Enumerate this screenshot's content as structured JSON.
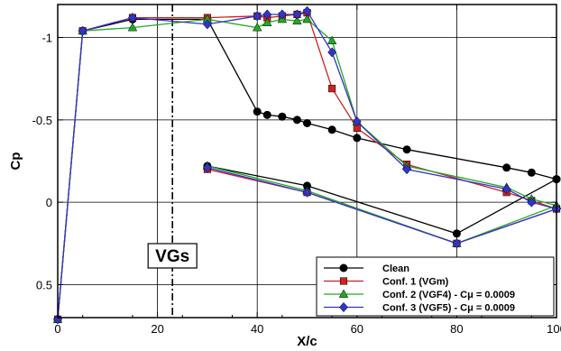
{
  "chart_data": {
    "type": "line",
    "title": "",
    "xlabel": "X/c",
    "ylabel": "Cp",
    "xlim": [
      0,
      100
    ],
    "ylim": [
      -1.2,
      0.7
    ],
    "y_inverted": true,
    "x_ticks": [
      0,
      20,
      40,
      60,
      80,
      100
    ],
    "y_ticks": [
      -1,
      -0.5,
      0,
      0.5
    ],
    "x_tick_labels": [
      "0",
      "20",
      "40",
      "60",
      "80",
      "100"
    ],
    "y_tick_labels": [
      "-1",
      "-0.5",
      "0",
      "0.5"
    ],
    "grid": true,
    "legend_position": "bottom-right",
    "annotations": [
      {
        "text": "VGs",
        "x": 23
      }
    ],
    "series": [
      {
        "name": "Clean",
        "color": "#000000",
        "marker": "circle",
        "upper": [
          [
            0,
            0.71
          ],
          [
            5,
            -1.04
          ],
          [
            15,
            -1.11
          ],
          [
            30,
            -1.11
          ],
          [
            40,
            -0.55
          ],
          [
            42,
            -0.53
          ],
          [
            45,
            -0.52
          ],
          [
            48,
            -0.5
          ],
          [
            50,
            -0.48
          ],
          [
            55,
            -0.44
          ],
          [
            60,
            -0.39
          ],
          [
            70,
            -0.32
          ],
          [
            90,
            -0.21
          ],
          [
            95,
            -0.18
          ],
          [
            100,
            -0.14
          ]
        ],
        "lower": [
          [
            30,
            -0.22
          ],
          [
            50,
            -0.1
          ],
          [
            80,
            0.19
          ],
          [
            100,
            -0.14
          ]
        ]
      },
      {
        "name": "Conf. 1 (VGm)",
        "color": "#cc2222",
        "marker": "square",
        "upper": [
          [
            0,
            0.71
          ],
          [
            5,
            -1.04
          ],
          [
            15,
            -1.12
          ],
          [
            30,
            -1.12
          ],
          [
            40,
            -1.13
          ],
          [
            42,
            -1.12
          ],
          [
            45,
            -1.13
          ],
          [
            48,
            -1.14
          ],
          [
            50,
            -1.15
          ],
          [
            55,
            -0.69
          ],
          [
            60,
            -0.45
          ],
          [
            70,
            -0.23
          ],
          [
            90,
            -0.06
          ],
          [
            95,
            -0.01
          ],
          [
            100,
            0.04
          ]
        ],
        "lower": [
          [
            30,
            -0.2
          ],
          [
            50,
            -0.06
          ],
          [
            80,
            0.25
          ],
          [
            100,
            0.04
          ]
        ]
      },
      {
        "name": "Conf. 2 (VGF4) - Cμ = 0.0009",
        "color": "#22aa22",
        "marker": "triangle",
        "upper": [
          [
            0,
            0.71
          ],
          [
            5,
            -1.04
          ],
          [
            15,
            -1.06
          ],
          [
            30,
            -1.11
          ],
          [
            40,
            -1.06
          ],
          [
            42,
            -1.09
          ],
          [
            45,
            -1.11
          ],
          [
            48,
            -1.1
          ],
          [
            50,
            -1.11
          ],
          [
            55,
            -0.98
          ],
          [
            60,
            -0.49
          ],
          [
            70,
            -0.22
          ],
          [
            90,
            -0.09
          ],
          [
            95,
            -0.02
          ],
          [
            100,
            0.02
          ]
        ],
        "lower": [
          [
            30,
            -0.22
          ],
          [
            50,
            -0.07
          ],
          [
            80,
            0.25
          ],
          [
            100,
            0.02
          ]
        ]
      },
      {
        "name": "Conf. 3 (VGF5) - Cμ = 0.0009",
        "color": "#3333cc",
        "marker": "diamond",
        "upper": [
          [
            0,
            0.71
          ],
          [
            5,
            -1.04
          ],
          [
            15,
            -1.12
          ],
          [
            30,
            -1.08
          ],
          [
            40,
            -1.13
          ],
          [
            42,
            -1.14
          ],
          [
            45,
            -1.14
          ],
          [
            48,
            -1.14
          ],
          [
            50,
            -1.16
          ],
          [
            55,
            -0.91
          ],
          [
            60,
            -0.49
          ],
          [
            70,
            -0.2
          ],
          [
            90,
            -0.08
          ],
          [
            95,
            0.0
          ],
          [
            100,
            0.04
          ]
        ],
        "lower": [
          [
            30,
            -0.21
          ],
          [
            50,
            -0.06
          ],
          [
            80,
            0.25
          ],
          [
            100,
            0.04
          ]
        ]
      }
    ]
  }
}
